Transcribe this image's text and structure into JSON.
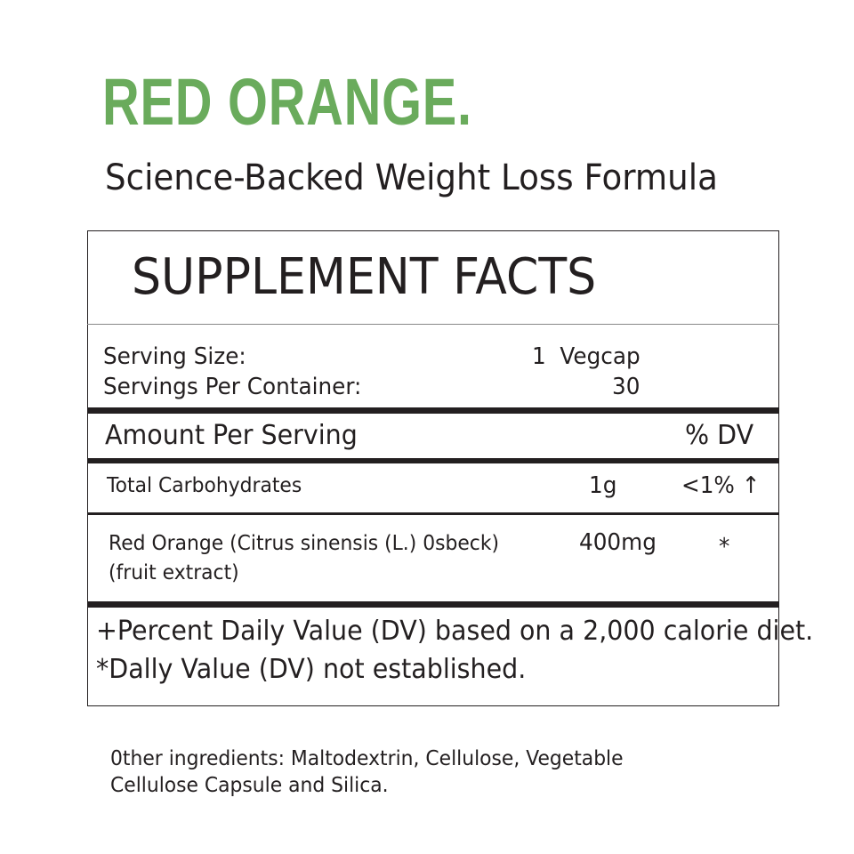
{
  "brand": "RED ORANGE.",
  "tagline": "Science-Backed Weight Loss Formula",
  "facts": {
    "title": "SUPPLEMENT FACTS",
    "serving": [
      {
        "label": "Serving Size:",
        "value": "1  Vegcap"
      },
      {
        "label": "Servings Per Container:",
        "value": "30"
      }
    ],
    "header": {
      "amount": "Amount Per Serving",
      "dv": "% DV"
    },
    "rows": [
      {
        "name": [
          "Total Carbohydrates"
        ],
        "amount": "1g",
        "dv": "<1% ↑"
      },
      {
        "name": [
          "Red Orange (Citrus sinensis (L.) 0sbeck)",
          "(fruit extract)"
        ],
        "amount": "400mg",
        "dv": "*"
      }
    ],
    "footnotes": [
      "+Percent Daily Value (DV) based on a 2,000 calorie diet.",
      "*Dally Value (DV) not established."
    ]
  },
  "other_ingredients": [
    "0ther ingredients: Maltodextrin, Cellulose, Vegetable",
    "Cellulose Capsule and Silica."
  ]
}
